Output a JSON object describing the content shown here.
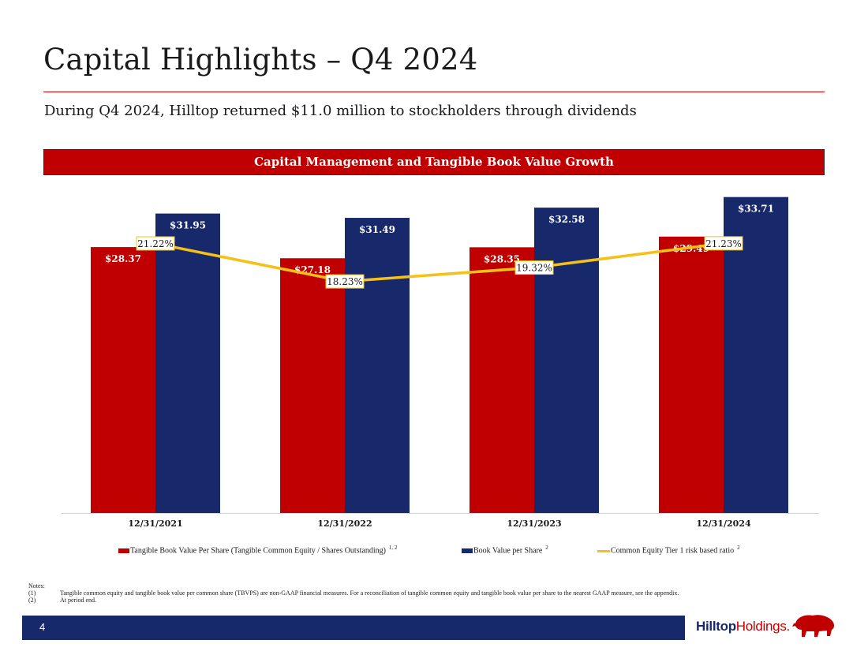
{
  "page": {
    "title": "Capital Highlights – Q4 2024",
    "subtitle": "During Q4 2024, Hilltop returned $11.0 million to stockholders through dividends",
    "banner": "Capital Management and Tangible Book Value Growth",
    "page_number": "4"
  },
  "colors": {
    "red": "#c00000",
    "navy": "#17296b",
    "gold": "#f5c116"
  },
  "chart_data": {
    "type": "bar",
    "title": "Capital Management and Tangible Book Value Growth",
    "categories": [
      "12/31/2021",
      "12/31/2022",
      "12/31/2023",
      "12/31/2024"
    ],
    "series": [
      {
        "name": "Tangible Book Value Per Share (Tangible Common Equity / Shares Outstanding)",
        "superscript": "1, 2",
        "values": [
          28.37,
          27.18,
          28.35,
          29.49
        ],
        "labels": [
          "$28.37",
          "$27.18",
          "$28.35",
          "$29.49"
        ],
        "color": "#c00000",
        "kind": "bar"
      },
      {
        "name": "Book Value per Share",
        "superscript": "2",
        "values": [
          31.95,
          31.49,
          32.58,
          33.71
        ],
        "labels": [
          "$31.95",
          "$31.49",
          "$32.58",
          "$33.71"
        ],
        "color": "#17296b",
        "kind": "bar"
      },
      {
        "name": "Common Equity Tier 1 risk based ratio",
        "superscript": "2",
        "values": [
          21.22,
          18.23,
          19.32,
          21.23
        ],
        "labels": [
          "21.22%",
          "18.23%",
          "19.32%",
          "21.23%"
        ],
        "color": "#f5c116",
        "kind": "line"
      }
    ],
    "ylim": [
      0,
      40
    ],
    "line_ylim": [
      0,
      24
    ],
    "grid": false,
    "legend_position": "bottom"
  },
  "notes": {
    "heading": "Notes:",
    "items": [
      {
        "num": "(1)",
        "text": "Tangible common equity and tangible book value per common share (TBVPS) are non-GAAP financial measures. For a reconciliation of tangible common equity and tangible book value per share to the nearest GAAP measure, see the appendix."
      },
      {
        "num": "(2)",
        "text": "At period end."
      }
    ]
  },
  "logo": {
    "bold": "Hilltop",
    "rest": "Holdings",
    "mark": "."
  }
}
